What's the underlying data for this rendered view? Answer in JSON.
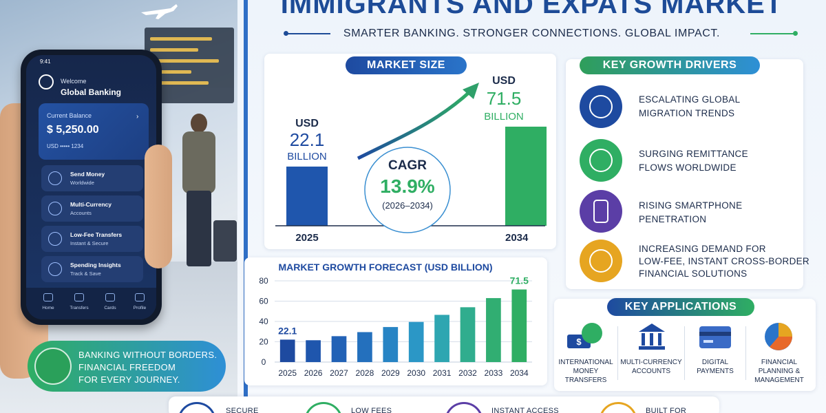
{
  "header": {
    "title": "IMMIGRANTS AND EXPATS MARKET",
    "subtitle": "SMARTER BANKING. STRONGER CONNECTIONS. GLOBAL IMPACT."
  },
  "phone": {
    "time": "9:41",
    "welcome": "Welcome",
    "brand": "Global Banking",
    "balance_label": "Current Balance",
    "balance": "$ 5,250.00",
    "account": "USD  ••••• 1234",
    "menu": [
      {
        "title": "Send Money",
        "sub": "Worldwide"
      },
      {
        "title": "Multi-Currency",
        "sub": "Accounts"
      },
      {
        "title": "Low-Fee Transfers",
        "sub": "Instant & Secure"
      },
      {
        "title": "Spending Insights",
        "sub": "Track & Save"
      }
    ],
    "tabs": [
      "Home",
      "Transfers",
      "Cards",
      "Profile"
    ]
  },
  "banner": {
    "lines": [
      "BANKING WITHOUT BORDERS.",
      "FINANCIAL FREEDOM",
      "FOR EVERY JOURNEY."
    ]
  },
  "market_size": {
    "label": "MARKET SIZE",
    "left": {
      "currency": "USD",
      "value": "22.1",
      "unit": "BILLION",
      "year": "2025"
    },
    "right": {
      "currency": "USD",
      "value": "71.5",
      "unit": "BILLION",
      "year": "2034"
    },
    "cagr_label": "CAGR",
    "cagr_value": "13.9%",
    "cagr_period": "(2026–2034)"
  },
  "drivers": {
    "label": "KEY GROWTH DRIVERS",
    "items": [
      {
        "lines": [
          "ESCALATING GLOBAL",
          "MIGRATION TRENDS"
        ],
        "color": "#1e4aa0",
        "icon": "people-globe-icon"
      },
      {
        "lines": [
          "SURGING REMITTANCE",
          "FLOWS WORLDWIDE"
        ],
        "color": "#2fae63",
        "icon": "dollar-cycle-icon"
      },
      {
        "lines": [
          "RISING SMARTPHONE",
          "PENETRATION"
        ],
        "color": "#5b3ea6",
        "icon": "smartphone-icon"
      },
      {
        "lines": [
          "INCREASING DEMAND FOR",
          "LOW-FEE, INSTANT CROSS-BORDER",
          "FINANCIAL SOLUTIONS"
        ],
        "color": "#e6a521",
        "icon": "globe-icon"
      }
    ]
  },
  "applications": {
    "label": "KEY APPLICATIONS",
    "items": [
      {
        "lines": [
          "INTERNATIONAL",
          "MONEY",
          "TRANSFERS"
        ],
        "icon": "money-globe-icon"
      },
      {
        "lines": [
          "MULTI-CURRENCY",
          "ACCOUNTS"
        ],
        "icon": "bank-icon"
      },
      {
        "lines": [
          "DIGITAL",
          "PAYMENTS"
        ],
        "icon": "card-icon"
      },
      {
        "lines": [
          "FINANCIAL",
          "PLANNING &",
          "MANAGEMENT"
        ],
        "icon": "pie-chart-icon"
      }
    ]
  },
  "bottom": {
    "items": [
      "SECURE",
      "LOW FEES",
      "INSTANT ACCESS",
      "BUILT FOR"
    ]
  },
  "chart_data": {
    "type": "bar",
    "title": "MARKET GROWTH FORECAST (USD BILLION)",
    "categories": [
      "2025",
      "2026",
      "2027",
      "2028",
      "2029",
      "2030",
      "2031",
      "2032",
      "2033",
      "2034"
    ],
    "values": [
      22.1,
      21.5,
      25.5,
      29.5,
      34.5,
      39.5,
      46.5,
      54,
      63,
      71.5
    ],
    "data_labels": {
      "0": "22.1",
      "9": "71.5"
    },
    "yticks": [
      "0",
      "20",
      "40",
      "60",
      "80"
    ],
    "ylim": [
      0,
      80
    ],
    "grid": true,
    "xlabel": "",
    "ylabel": "",
    "colors": [
      "#1e4aa0",
      "#1f56ad",
      "#2262b6",
      "#2470bd",
      "#2784c4",
      "#2b97c6",
      "#2ea6b1",
      "#30ad8e",
      "#31ae72",
      "#2fae63"
    ]
  }
}
